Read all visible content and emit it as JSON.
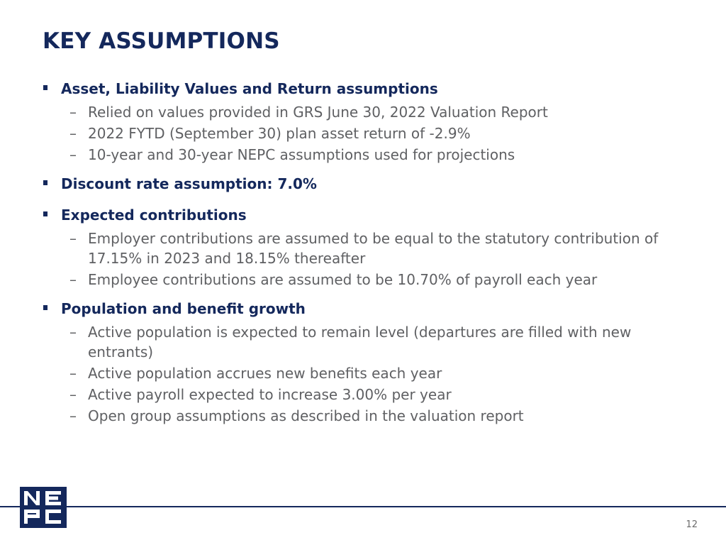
{
  "title": "KEY ASSUMPTIONS",
  "sections": [
    {
      "heading": "Asset, Liability Values and Return assumptions",
      "items": [
        "Relied on values provided in GRS June 30, 2022 Valuation Report",
        "2022 FYTD (September 30) plan asset return of -2.9%",
        "10-year and 30-year NEPC assumptions used for projections"
      ]
    },
    {
      "heading": "Discount rate assumption: 7.0%",
      "items": []
    },
    {
      "heading": "Expected contributions",
      "items": [
        "Employer contributions are assumed to be equal to the statutory contribution of 17.15% in 2023 and 18.15% thereafter",
        "Employee contributions are assumed to be 10.70% of payroll each year"
      ]
    },
    {
      "heading": "Population and benefit growth",
      "items": [
        "Active population is expected to remain level (departures are filled with new entrants)",
        "Active population accrues new benefits each year",
        "Active payroll expected to increase 3.00% per year",
        "Open group assumptions as described in the valuation report"
      ]
    }
  ],
  "bullet_glyph": "▪",
  "dash_glyph": "–",
  "logo": {
    "letters": "NEPC",
    "color": "#14285c"
  },
  "page_number": "12"
}
